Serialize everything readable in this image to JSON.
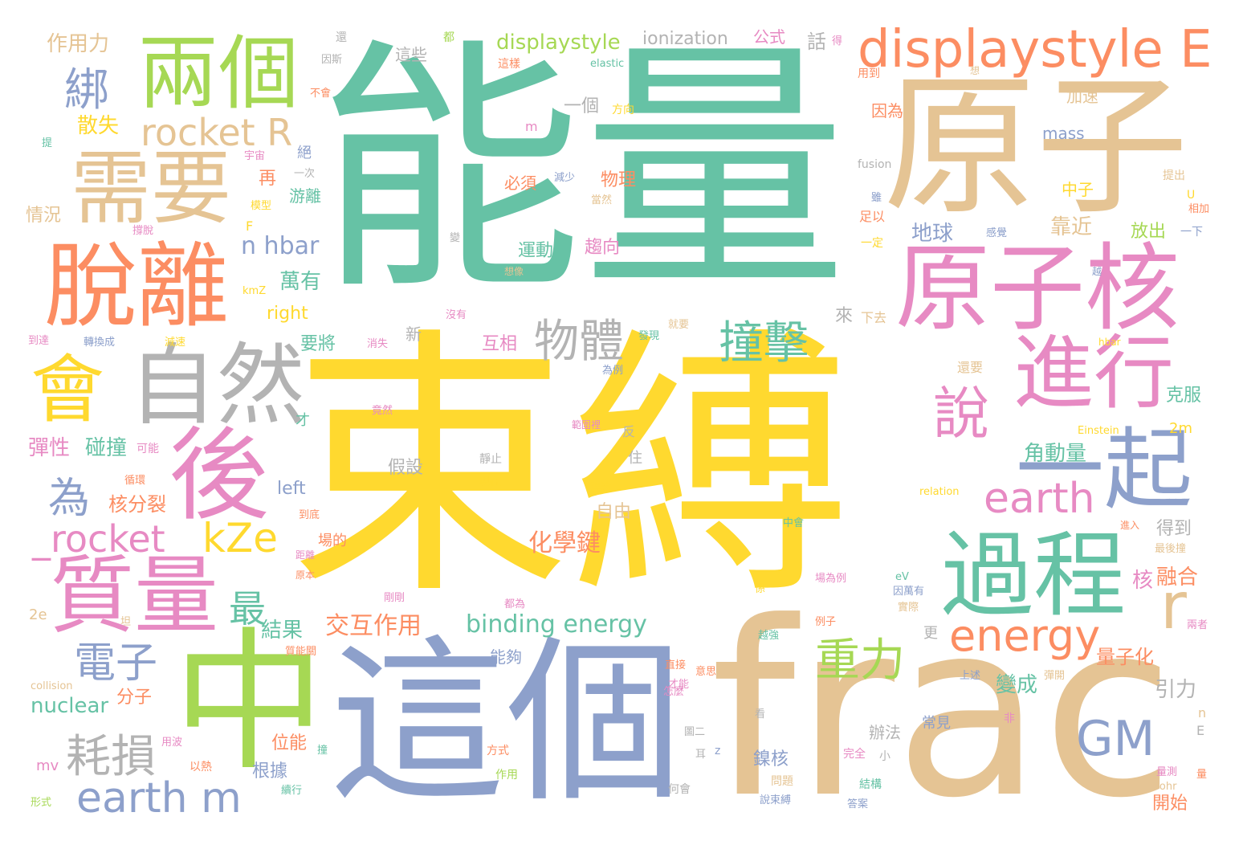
{
  "palette": {
    "green": "#66c2a5",
    "orange": "#fc8d62",
    "blue": "#8da0cb",
    "pink": "#e78ac3",
    "lime": "#a6d854",
    "yellow": "#ffd92f",
    "tan": "#e5c494",
    "gray": "#b3b3b3"
  },
  "words": [
    {
      "text": "能量",
      "color": "green"
    },
    {
      "text": "束縛",
      "color": "yellow"
    },
    {
      "text": "frac",
      "color": "tan"
    },
    {
      "text": "這個",
      "color": "blue"
    },
    {
      "text": "中",
      "color": "lime"
    },
    {
      "text": "原子",
      "color": "tan"
    },
    {
      "text": "兩個",
      "color": "lime"
    },
    {
      "text": "脫離",
      "color": "orange"
    },
    {
      "text": "需要",
      "color": "tan"
    },
    {
      "text": "原子核",
      "color": "pink"
    },
    {
      "text": "自然",
      "color": "gray"
    },
    {
      "text": "後",
      "color": "pink"
    },
    {
      "text": "會",
      "color": "yellow"
    },
    {
      "text": "質量",
      "color": "pink"
    },
    {
      "text": "過程",
      "color": "green"
    },
    {
      "text": "進行",
      "color": "pink"
    },
    {
      "text": "一起",
      "color": "blue"
    },
    {
      "text": "displaystyle E",
      "color": "orange"
    },
    {
      "text": "說",
      "color": "pink"
    },
    {
      "text": "rocket R",
      "color": "tan"
    },
    {
      "text": "_rocket",
      "color": "pink"
    },
    {
      "text": "kZe",
      "color": "yellow"
    },
    {
      "text": "earth",
      "color": "pink"
    },
    {
      "text": "energy",
      "color": "orange"
    },
    {
      "text": "earth m",
      "color": "blue"
    },
    {
      "text": "耗損",
      "color": "gray"
    },
    {
      "text": "GM",
      "color": "blue"
    },
    {
      "text": "物體",
      "color": "gray"
    },
    {
      "text": "撞擊",
      "color": "green"
    },
    {
      "text": "重力",
      "color": "lime"
    },
    {
      "text": "電子",
      "color": "blue"
    },
    {
      "text": "r",
      "color": "tan"
    },
    {
      "text": "為",
      "color": "blue"
    },
    {
      "text": "最",
      "color": "green"
    },
    {
      "text": "綁",
      "color": "blue"
    },
    {
      "text": "binding energy",
      "color": "green"
    },
    {
      "text": "nuclear",
      "color": "green"
    },
    {
      "text": "n hbar",
      "color": "blue"
    },
    {
      "text": "displaystyle",
      "color": "lime"
    },
    {
      "text": "ionization",
      "color": "gray"
    },
    {
      "text": "作用力",
      "color": "tan"
    },
    {
      "text": "化學鍵",
      "color": "orange"
    },
    {
      "text": "交互作用",
      "color": "orange"
    },
    {
      "text": "結果",
      "color": "green"
    },
    {
      "text": "萬有",
      "color": "green"
    },
    {
      "text": "地球",
      "color": "blue"
    },
    {
      "text": "靠近",
      "color": "tan"
    },
    {
      "text": "運動",
      "color": "green"
    },
    {
      "text": "趨向",
      "color": "pink"
    },
    {
      "text": "互相",
      "color": "pink"
    },
    {
      "text": "要將",
      "color": "green"
    },
    {
      "text": "核分裂",
      "color": "orange"
    },
    {
      "text": "彈性",
      "color": "pink"
    },
    {
      "text": "碰撞",
      "color": "green"
    },
    {
      "text": "散失",
      "color": "yellow"
    },
    {
      "text": "情況",
      "color": "tan"
    },
    {
      "text": "left",
      "color": "blue"
    },
    {
      "text": "right",
      "color": "yellow"
    },
    {
      "text": "角動量",
      "color": "green"
    },
    {
      "text": "融合",
      "color": "orange"
    },
    {
      "text": "核",
      "color": "pink"
    },
    {
      "text": "量子化",
      "color": "orange"
    },
    {
      "text": "變成",
      "color": "green"
    },
    {
      "text": "引力",
      "color": "gray"
    },
    {
      "text": "得到",
      "color": "gray"
    },
    {
      "text": "克服",
      "color": "green"
    },
    {
      "text": "假設",
      "color": "gray"
    },
    {
      "text": "自由",
      "color": "tan"
    },
    {
      "text": "根據",
      "color": "blue"
    },
    {
      "text": "位能",
      "color": "orange"
    },
    {
      "text": "鎳核",
      "color": "blue"
    },
    {
      "text": "辦法",
      "color": "gray"
    },
    {
      "text": "常見",
      "color": "blue"
    },
    {
      "text": "開始",
      "color": "orange"
    },
    {
      "text": "分子",
      "color": "orange"
    },
    {
      "text": "物理",
      "color": "orange"
    },
    {
      "text": "必須",
      "color": "orange"
    },
    {
      "text": "游離",
      "color": "green"
    },
    {
      "text": "放出",
      "color": "lime"
    },
    {
      "text": "中子",
      "color": "yellow"
    },
    {
      "text": "mass",
      "color": "blue"
    },
    {
      "text": "加速",
      "color": "tan"
    },
    {
      "text": "因為",
      "color": "orange"
    },
    {
      "text": "一個",
      "color": "gray"
    },
    {
      "text": "這些",
      "color": "gray"
    },
    {
      "text": "公式",
      "color": "pink"
    },
    {
      "text": "話",
      "color": "gray"
    },
    {
      "text": "來",
      "color": "gray"
    },
    {
      "text": "新",
      "color": "gray"
    },
    {
      "text": "再",
      "color": "orange"
    },
    {
      "text": "Einstein",
      "color": "yellow"
    },
    {
      "text": "2m",
      "color": "yellow"
    },
    {
      "text": "mv",
      "color": "pink"
    },
    {
      "text": "2e",
      "color": "tan"
    },
    {
      "text": "E",
      "color": "gray"
    },
    {
      "text": "n",
      "color": "tan"
    },
    {
      "text": "m",
      "color": "pink"
    },
    {
      "text": "F",
      "color": "yellow"
    },
    {
      "text": "U",
      "color": "yellow"
    },
    {
      "text": "z",
      "color": "blue"
    },
    {
      "text": "更",
      "color": "gray"
    },
    {
      "text": "住",
      "color": "gray"
    },
    {
      "text": "反",
      "color": "gray"
    },
    {
      "text": "才",
      "color": "green"
    },
    {
      "text": "都",
      "color": "lime"
    },
    {
      "text": "一下",
      "color": "blue"
    },
    {
      "text": "下去",
      "color": "tan"
    },
    {
      "text": "一定",
      "color": "yellow"
    },
    {
      "text": "足以",
      "color": "orange"
    },
    {
      "text": "相加",
      "color": "orange"
    },
    {
      "text": "提出",
      "color": "tan"
    },
    {
      "text": "感覺",
      "color": "blue"
    },
    {
      "text": "想像",
      "color": "tan"
    },
    {
      "text": "發現",
      "color": "green"
    },
    {
      "text": "就要",
      "color": "tan"
    },
    {
      "text": "還要",
      "color": "tan"
    },
    {
      "text": "為例",
      "color": "blue"
    },
    {
      "text": "消失",
      "color": "pink"
    },
    {
      "text": "竟然",
      "color": "pink"
    },
    {
      "text": "可能",
      "color": "pink"
    },
    {
      "text": "轉換成",
      "color": "blue"
    },
    {
      "text": "減速",
      "color": "yellow"
    },
    {
      "text": "到達",
      "color": "pink"
    },
    {
      "text": "循環",
      "color": "orange"
    },
    {
      "text": "到底",
      "color": "orange"
    },
    {
      "text": "場的",
      "color": "orange"
    },
    {
      "text": "距離",
      "color": "pink"
    },
    {
      "text": "原本",
      "color": "orange"
    },
    {
      "text": "剛剛",
      "color": "pink"
    },
    {
      "text": "都為",
      "color": "pink"
    },
    {
      "text": "能夠",
      "color": "blue"
    },
    {
      "text": "靜止",
      "color": "gray"
    },
    {
      "text": "現在",
      "color": "yellow"
    },
    {
      "text": "理論",
      "color": "yellow"
    },
    {
      "text": "範圍裡",
      "color": "pink"
    },
    {
      "text": "中會",
      "color": "green"
    },
    {
      "text": "場為例",
      "color": "pink"
    },
    {
      "text": "因斯",
      "color": "gray"
    },
    {
      "text": "這樣",
      "color": "orange"
    },
    {
      "text": "方向",
      "color": "yellow"
    },
    {
      "text": "用到",
      "color": "orange"
    },
    {
      "text": "宇宙",
      "color": "pink"
    },
    {
      "text": "模型",
      "color": "yellow"
    },
    {
      "text": "撐脫",
      "color": "pink"
    },
    {
      "text": "一次",
      "color": "gray"
    },
    {
      "text": "減少",
      "color": "blue"
    },
    {
      "text": "當然",
      "color": "tan"
    },
    {
      "text": "沒有",
      "color": "pink"
    },
    {
      "text": "以熱",
      "color": "orange"
    },
    {
      "text": "用波",
      "color": "pink"
    },
    {
      "text": "作用",
      "color": "lime"
    },
    {
      "text": "方式",
      "color": "orange"
    },
    {
      "text": "形式",
      "color": "lime"
    },
    {
      "text": "何會",
      "color": "gray"
    },
    {
      "text": "說束縛",
      "color": "blue"
    },
    {
      "text": "問題",
      "color": "tan"
    },
    {
      "text": "答案",
      "color": "blue"
    },
    {
      "text": "結構",
      "color": "green"
    },
    {
      "text": "完全",
      "color": "pink"
    },
    {
      "text": "量測",
      "color": "pink"
    },
    {
      "text": "Bohr",
      "color": "tan"
    },
    {
      "text": "量",
      "color": "orange"
    },
    {
      "text": "小",
      "color": "gray"
    },
    {
      "text": "兩者",
      "color": "pink"
    },
    {
      "text": "最後撞",
      "color": "tan"
    },
    {
      "text": "進入",
      "color": "orange"
    },
    {
      "text": "彈開",
      "color": "tan"
    },
    {
      "text": "非",
      "color": "pink"
    },
    {
      "text": "上述",
      "color": "blue"
    },
    {
      "text": "實際",
      "color": "tan"
    },
    {
      "text": "因萬有",
      "color": "blue"
    },
    {
      "text": "eV",
      "color": "green"
    },
    {
      "text": "例子",
      "color": "orange"
    },
    {
      "text": "越強",
      "color": "green"
    },
    {
      "text": "直接",
      "color": "orange"
    },
    {
      "text": "意思",
      "color": "orange"
    },
    {
      "text": "怎麼",
      "color": "pink"
    },
    {
      "text": "才能",
      "color": "pink"
    },
    {
      "text": "看",
      "color": "gray"
    },
    {
      "text": "圖二",
      "color": "gray"
    },
    {
      "text": "耳",
      "color": "gray"
    },
    {
      "text": "係",
      "color": "yellow"
    },
    {
      "text": "質能關",
      "color": "orange"
    },
    {
      "text": "collision",
      "color": "tan"
    },
    {
      "text": "elastic",
      "color": "green"
    },
    {
      "text": "fusion",
      "color": "gray"
    },
    {
      "text": "kmZ",
      "color": "yellow"
    },
    {
      "text": "hbar",
      "color": "yellow"
    },
    {
      "text": "relation",
      "color": "yellow"
    },
    {
      "text": "提",
      "color": "green"
    },
    {
      "text": "撞",
      "color": "green"
    },
    {
      "text": "坦",
      "color": "tan"
    },
    {
      "text": "續行",
      "color": "green"
    },
    {
      "text": "還",
      "color": "gray"
    },
    {
      "text": "不會",
      "color": "orange"
    },
    {
      "text": "得",
      "color": "pink"
    },
    {
      "text": "想",
      "color": "tan"
    },
    {
      "text": "變",
      "color": "gray"
    },
    {
      "text": "雖",
      "color": "blue"
    },
    {
      "text": "越",
      "color": "blue"
    },
    {
      "text": "絕",
      "color": "blue"
    }
  ]
}
